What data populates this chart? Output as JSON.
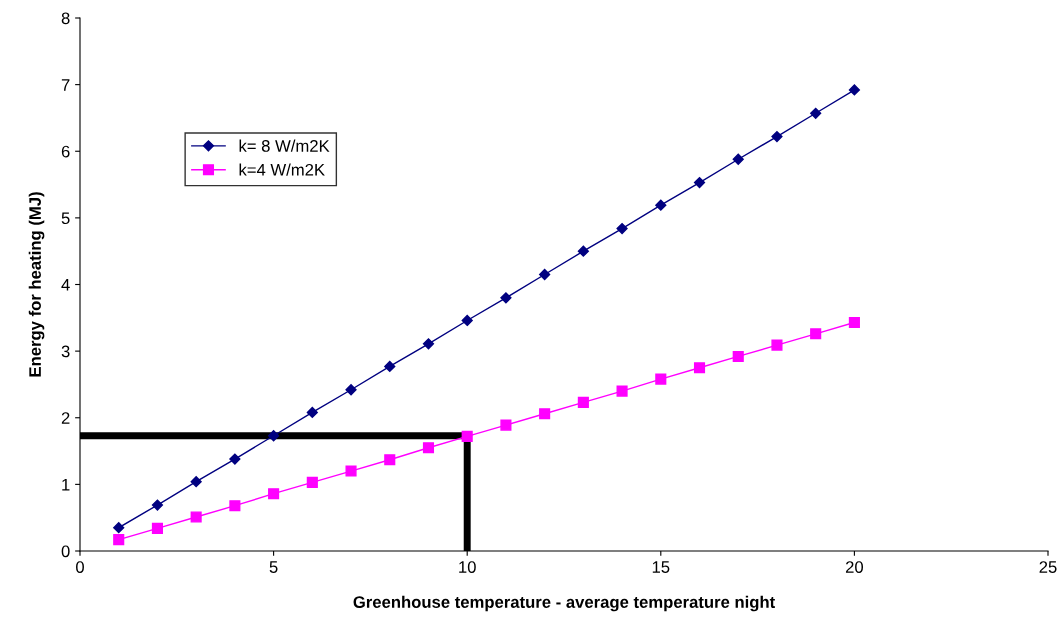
{
  "chart_data": {
    "type": "line",
    "xlabel": "Greenhouse temperature - average temperature night",
    "ylabel": "Energy for heating (MJ)",
    "xlim": [
      0,
      25
    ],
    "xticks": [
      0,
      5,
      10,
      15,
      20,
      25
    ],
    "ylim": [
      0,
      8
    ],
    "yticks": [
      0,
      1,
      2,
      3,
      4,
      5,
      6,
      7,
      8
    ],
    "grid": false,
    "legend": "top left",
    "line_style": "solid",
    "series": [
      {
        "name": "k= 8 W/m2K",
        "color": "#000080",
        "marker": "diamond",
        "x": [
          1,
          2,
          3,
          4,
          5,
          6,
          7,
          8,
          9,
          10,
          11,
          12,
          13,
          14,
          15,
          16,
          17,
          18,
          19,
          20
        ],
        "values": [
          0.35,
          0.69,
          1.04,
          1.38,
          1.73,
          2.08,
          2.42,
          2.77,
          3.11,
          3.46,
          3.8,
          4.15,
          4.5,
          4.84,
          5.19,
          5.53,
          5.88,
          6.22,
          6.57,
          6.92
        ]
      },
      {
        "name": "k=4 W/m2K",
        "color": "#ff00ff",
        "marker": "square",
        "x": [
          1,
          2,
          3,
          4,
          5,
          6,
          7,
          8,
          9,
          10,
          11,
          12,
          13,
          14,
          15,
          16,
          17,
          18,
          19,
          20
        ],
        "values": [
          0.17,
          0.34,
          0.51,
          0.68,
          0.86,
          1.03,
          1.2,
          1.37,
          1.55,
          1.72,
          1.89,
          2.06,
          2.23,
          2.4,
          2.58,
          2.75,
          2.92,
          3.09,
          3.26,
          3.43
        ]
      },
      {
        "color": "#000000",
        "marker": "none",
        "x": [
          0,
          10,
          10
        ],
        "values": [
          1.73,
          1.73,
          0
        ]
      }
    ]
  }
}
